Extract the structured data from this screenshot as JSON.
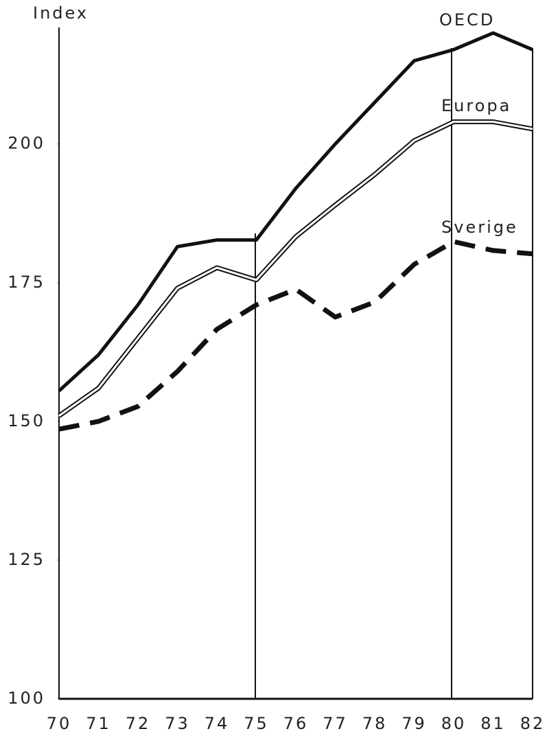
{
  "chart_data": {
    "type": "line",
    "y_label": "Index",
    "categories": [
      "70",
      "71",
      "72",
      "73",
      "74",
      "75",
      "76",
      "77",
      "78",
      "79",
      "80",
      "81",
      "82"
    ],
    "series": [
      {
        "name": "OECD",
        "color": "#111",
        "style": "solid",
        "values": [
          155.5,
          162,
          171,
          181.5,
          182.7,
          182.7,
          192,
          200,
          207.5,
          215,
          217,
          220,
          217
        ]
      },
      {
        "name": "Europa",
        "color": "#111",
        "style": "double",
        "values": [
          151,
          156,
          165,
          174,
          177.7,
          175.5,
          183.3,
          189,
          194.5,
          200.6,
          204,
          204,
          202.7
        ]
      },
      {
        "name": "Sverige",
        "color": "#111",
        "style": "dashed",
        "values": [
          148.6,
          150,
          152.7,
          159,
          166.6,
          171,
          173.8,
          168.8,
          171.5,
          178.3,
          182.4,
          180.8,
          180.2
        ]
      }
    ],
    "ylim": [
      100,
      221
    ],
    "yticks": [
      100,
      125,
      150,
      175,
      200
    ]
  }
}
